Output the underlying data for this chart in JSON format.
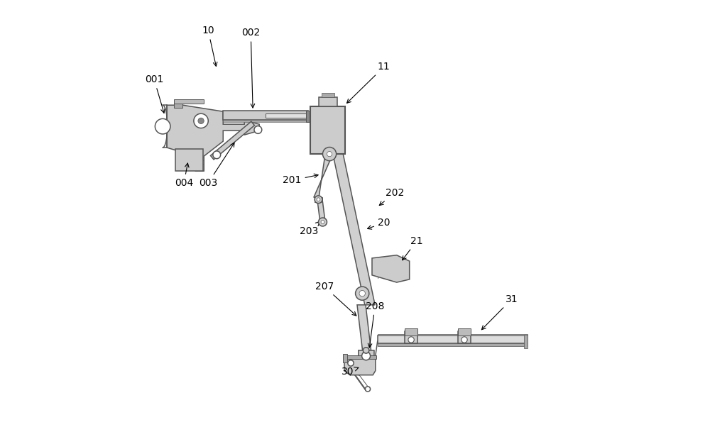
{
  "bg_color": "#ffffff",
  "line_color": "#555555",
  "fill_color": "#d0d0d0",
  "label_color": "#000000",
  "figsize": [
    10.0,
    6.02
  ],
  "dpi": 100
}
